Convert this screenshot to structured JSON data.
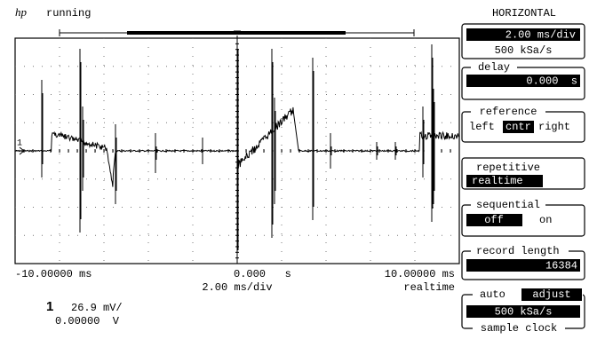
{
  "header": {
    "logo": "hp",
    "status": "running"
  },
  "screen": {
    "left_time": "-10.00000 ms",
    "center_time": "0.000   s",
    "right_time": "10.00000 ms",
    "timebase": "2.00 ms/div",
    "mode": "realtime",
    "channel_marker": "1"
  },
  "channel": {
    "number": "1",
    "scale": "26.9 mV/",
    "offset": "0.00000  V"
  },
  "panel": {
    "title": "HORIZONTAL",
    "timebase": {
      "value": "2.00 ms/div",
      "sample_rate": "500 kSa/s"
    },
    "delay": {
      "label": "delay",
      "value": "0.000  s"
    },
    "reference": {
      "label": "reference",
      "left": "left",
      "center": "cntr",
      "right": "right"
    },
    "repetitive": {
      "label": "repetitive",
      "value": "realtime"
    },
    "sequential": {
      "label": "sequential",
      "off": "off",
      "on": "on"
    },
    "record_length": {
      "label": "record length",
      "value": "16384"
    },
    "sample_clock": {
      "auto": "auto",
      "adjust": "adjust",
      "value": "500 kSa/s",
      "label": "sample clock"
    }
  }
}
